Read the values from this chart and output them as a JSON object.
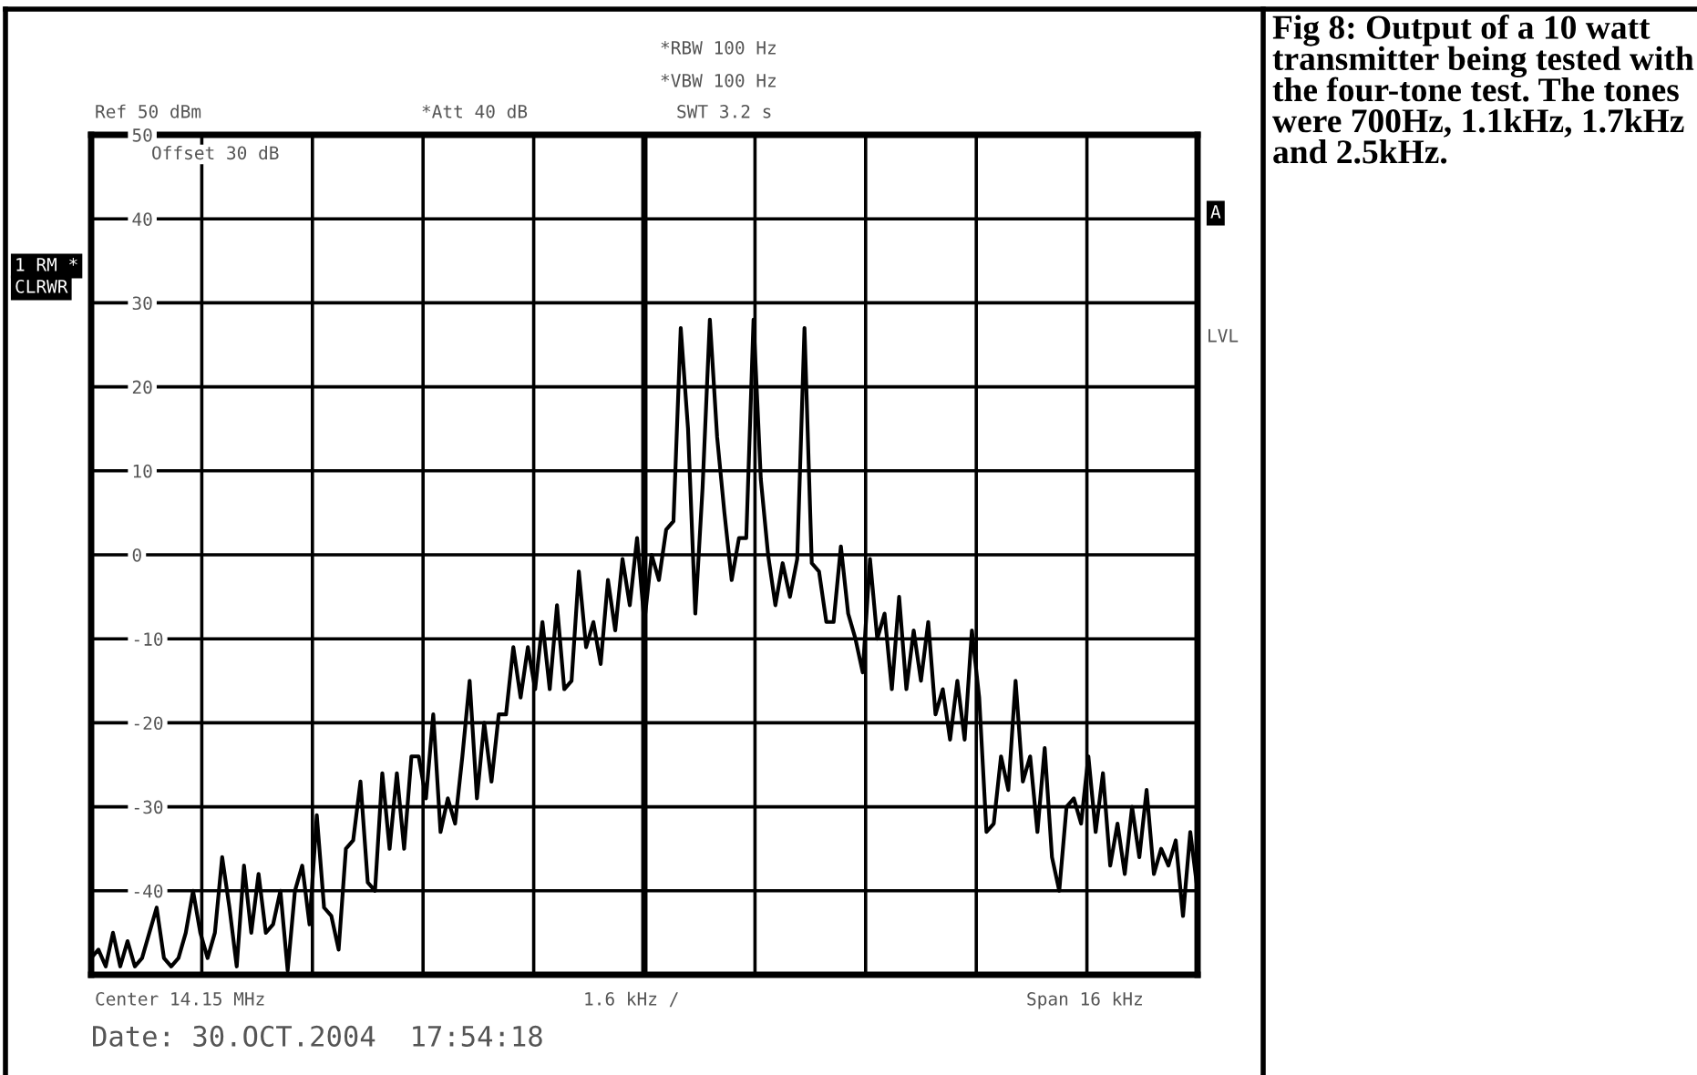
{
  "chart_data": {
    "type": "line",
    "annotations": [
      "Fig 8: Output of a 10 watt transmitter being tested with the four-tone test. The tones were 700Hz, 1.1kHz, 1.7kHz and 2.5kHz.",
      "*RBW 100 Hz",
      "*VBW 100 Hz",
      "Ref 50 dBm",
      "*Att 40 dB",
      "SWT 3.2 s",
      "Offset 30 dB",
      "1 RM *",
      "CLRWR",
      "A",
      "LVL",
      "Center 14.15 MHz",
      "1.6 kHz /",
      "Span 16 kHz",
      "Date: 30.OCT.2004  17:54:18"
    ],
    "categories": [
      null,
      null,
      null,
      null,
      null,
      null,
      null,
      null,
      null,
      null,
      null,
      null,
      null,
      null,
      null,
      null,
      null,
      null,
      null,
      null,
      null,
      null,
      null,
      null,
      null,
      null,
      null,
      null,
      null,
      null,
      null,
      null,
      null,
      null,
      null,
      null,
      null,
      null,
      null,
      null,
      null,
      null,
      null,
      null,
      null,
      null,
      null,
      null,
      null,
      null,
      null,
      null,
      null,
      null,
      null,
      null,
      null,
      null,
      null,
      null,
      null,
      null,
      null,
      null,
      null,
      null,
      null,
      null,
      null,
      null,
      null,
      null,
      null,
      null,
      null,
      null,
      null,
      null,
      null,
      null,
      null,
      null,
      null,
      null,
      null,
      null,
      null,
      null,
      null,
      null,
      null,
      null,
      null,
      null,
      null,
      null,
      null,
      null,
      null,
      null,
      null,
      null,
      null,
      null,
      null,
      null,
      null,
      null,
      null,
      null,
      null,
      null,
      null,
      null,
      null,
      null,
      null,
      null,
      null,
      null,
      null,
      null,
      null,
      null,
      null,
      null,
      null,
      null,
      null,
      null,
      null,
      null,
      null,
      null,
      null,
      null,
      null,
      null,
      null,
      null,
      null,
      null,
      null,
      null,
      null,
      null,
      null,
      null,
      null,
      null,
      null,
      null,
      null
    ],
    "series": [
      {
        "color": "#000000",
        "values": [
          -48,
          -47,
          -49,
          -45,
          -49,
          -46,
          -49,
          -48,
          -45,
          -42,
          -48,
          -49,
          -48,
          -45,
          -40,
          -45,
          -48,
          -45,
          -36,
          -42,
          -49,
          -37,
          -45,
          -38,
          -45,
          -44,
          -40,
          -49.5,
          -40,
          -37,
          -44,
          -31,
          -42,
          -43,
          -47,
          -35,
          -34,
          -27,
          -39,
          -40,
          -26,
          -35,
          -26,
          -35,
          -24,
          -24,
          -29,
          -19,
          -33,
          -29,
          -32,
          -24,
          -15,
          -29,
          -20,
          -27,
          -19,
          -19,
          -11,
          -17,
          -11,
          -16,
          -8,
          -16,
          -6,
          -16,
          -15,
          -2,
          -11,
          -8,
          -13,
          -3,
          -9,
          -0.5,
          -6,
          2,
          -8,
          0,
          -3,
          3,
          4,
          27,
          15,
          -7,
          8,
          28,
          14,
          5,
          -3,
          2,
          2,
          28,
          9,
          0,
          -6,
          -1,
          -5,
          -0.5,
          27,
          -1,
          -2,
          -8,
          -8,
          1,
          -7,
          -10,
          -14,
          -0.5,
          -10,
          -7,
          -16,
          -5,
          -16,
          -9,
          -15,
          -8,
          -19,
          -16,
          -22,
          -15,
          -22,
          -9,
          -17,
          -33,
          -32,
          -24,
          -28,
          -15,
          -27,
          -24,
          -33,
          -23,
          -36,
          -40,
          -30,
          -29,
          -32,
          -24,
          -33,
          -26,
          -37,
          -32,
          -38,
          -30,
          -36,
          -28,
          -38,
          -35,
          -37,
          -34,
          -43,
          -33,
          -40
        ]
      }
    ],
    "ylim": [
      -50,
      50
    ],
    "yticks": [
      50,
      40,
      30,
      20,
      10,
      0,
      -10,
      -20,
      -30,
      -40,
      {
        "value": -50,
        "label": null
      }
    ],
    "grid": true
  }
}
